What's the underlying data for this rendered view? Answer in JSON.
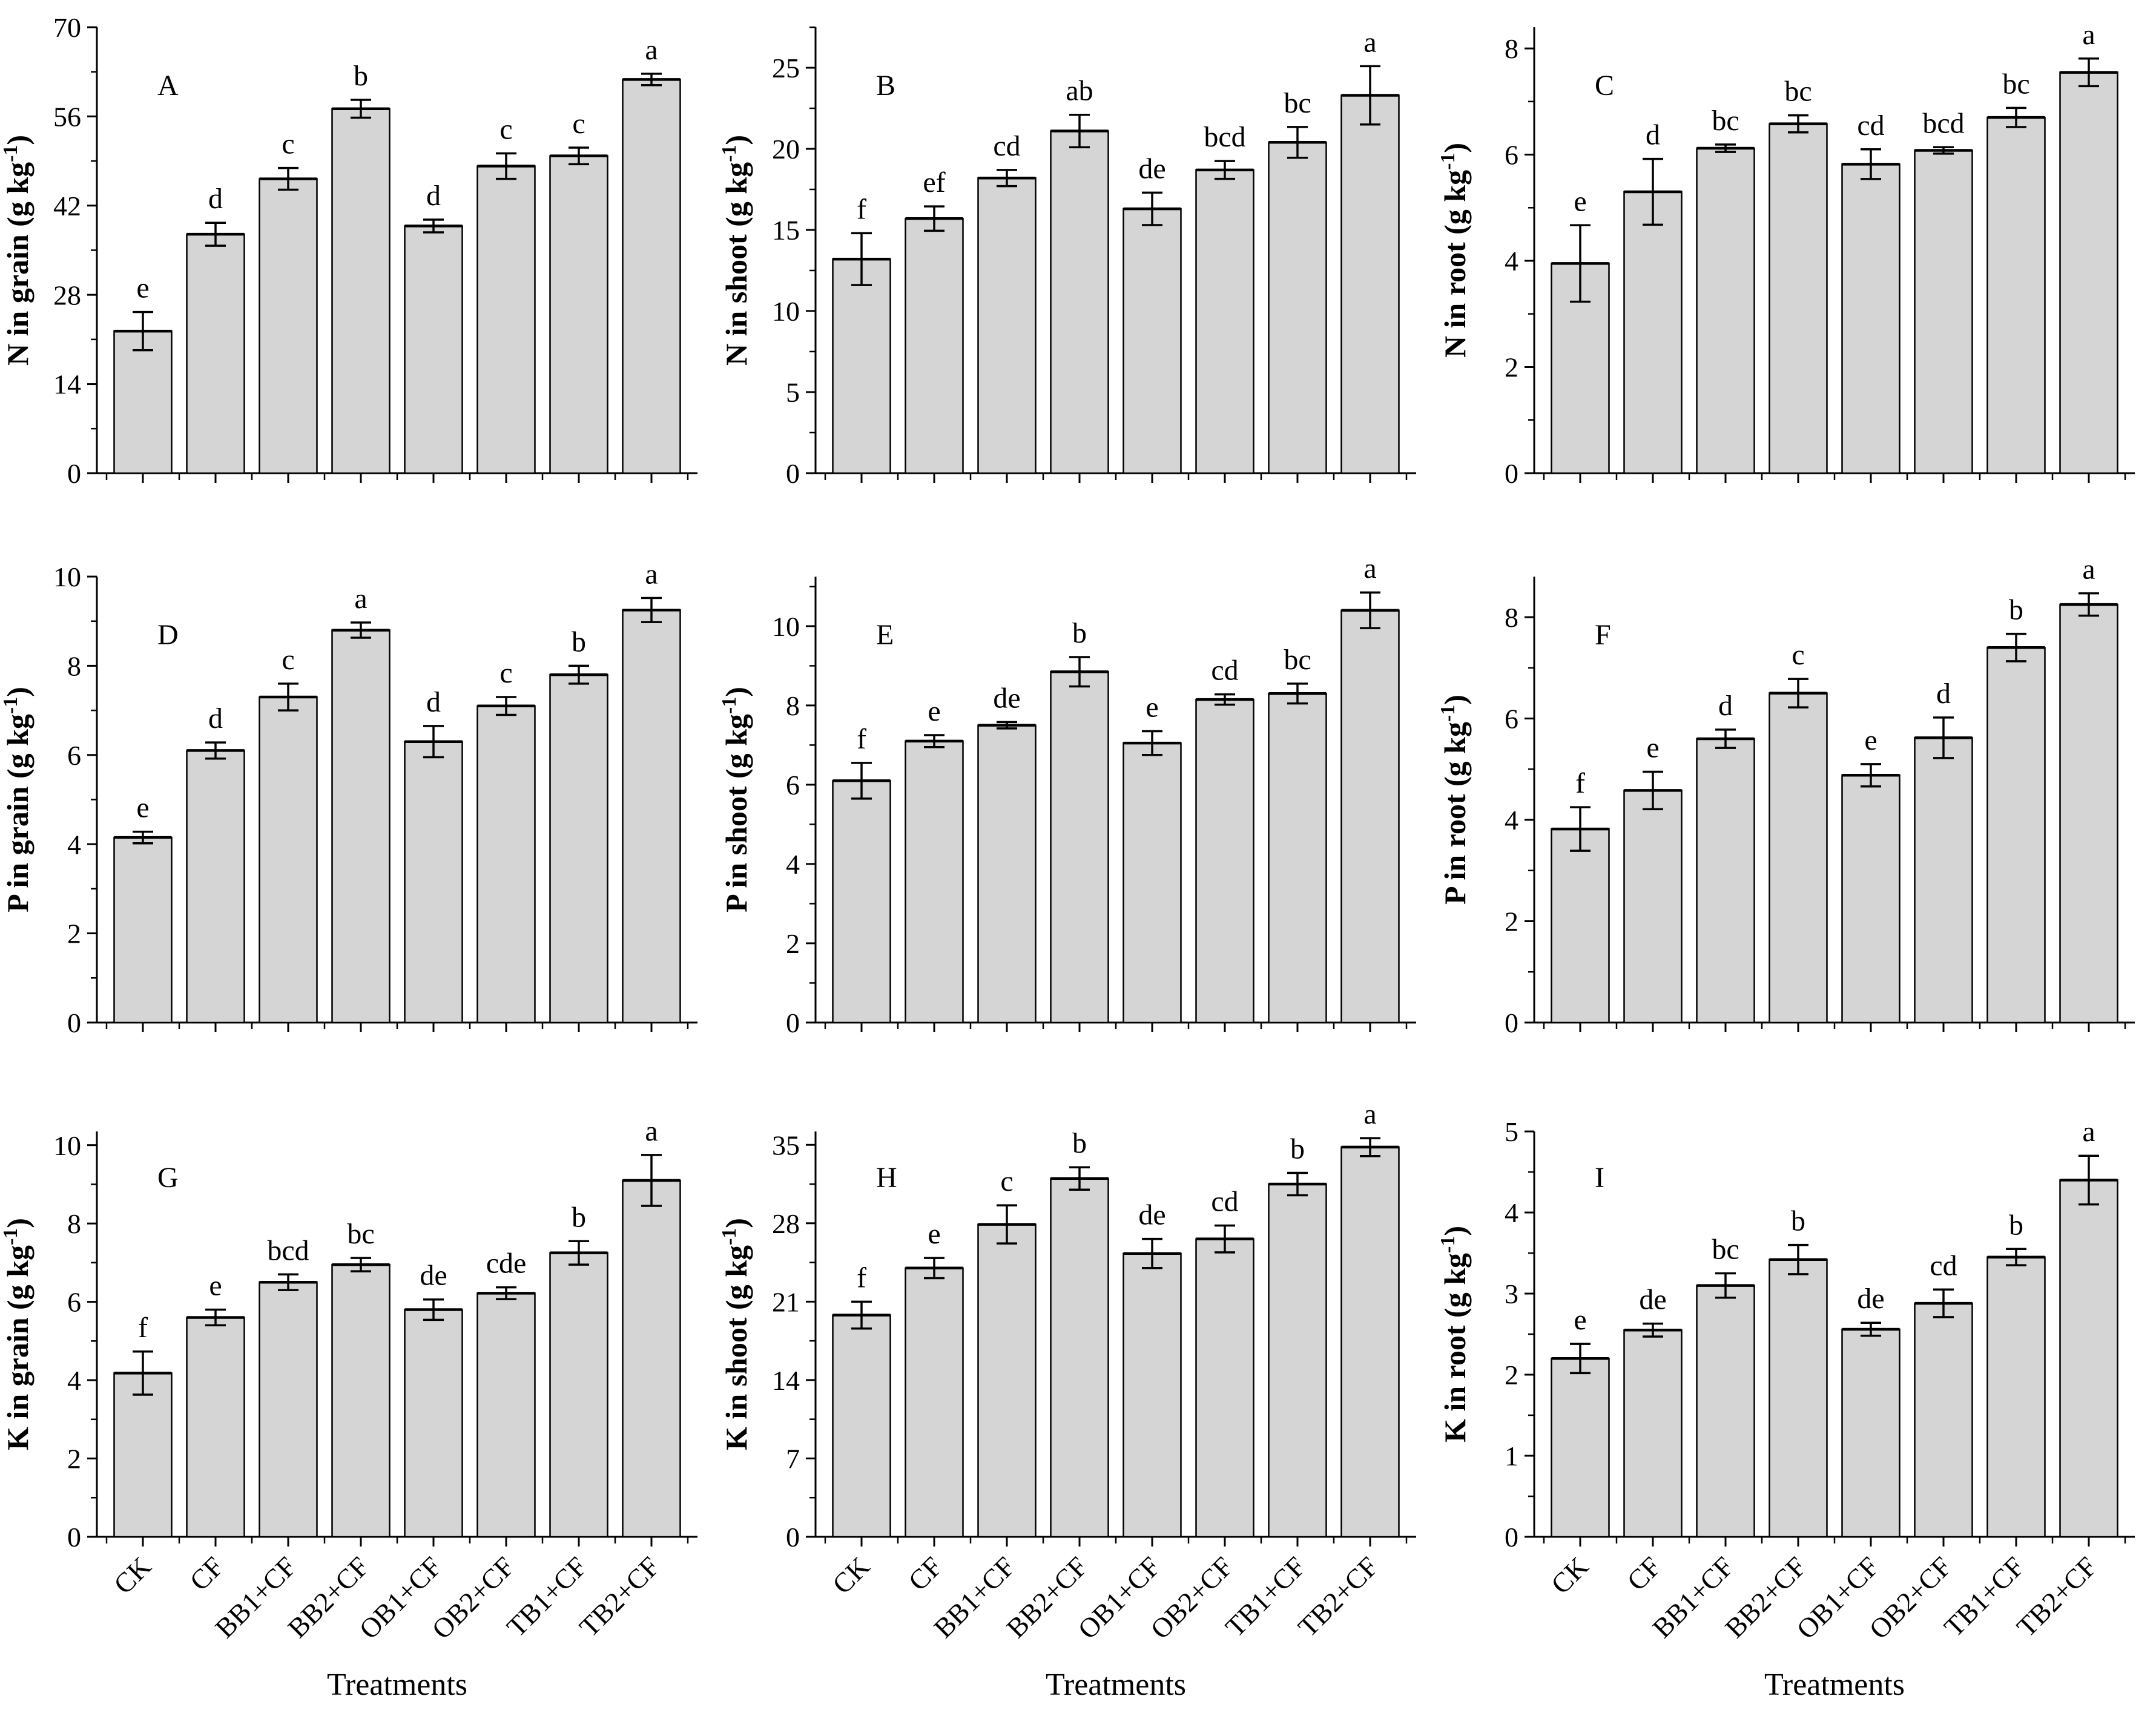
{
  "figure": {
    "background_color": "#ffffff",
    "bar_fill_color": "#d5d5d5",
    "line_color": "#000000",
    "xlabel": "Treatments",
    "categories": [
      "CK",
      "CF",
      "BB1+CF",
      "BB2+CF",
      "OB1+CF",
      "OB2+CF",
      "TB1+CF",
      "TB2+CF"
    ]
  },
  "chart_data": [
    {
      "type": "bar",
      "panel_label": "A",
      "ylabel": "N in grain (g kg⁻¹)",
      "categories": [
        "CK",
        "CF",
        "BB1+CF",
        "BB2+CF",
        "OB1+CF",
        "OB2+CF",
        "TB1+CF",
        "TB2+CF"
      ],
      "values": [
        22.3,
        37.5,
        46.2,
        57.2,
        38.8,
        48.2,
        49.8,
        61.8
      ],
      "errors": [
        3.0,
        1.8,
        1.7,
        1.4,
        1.0,
        2.0,
        1.3,
        0.9
      ],
      "sig_letters": [
        "e",
        "d",
        "c",
        "b",
        "d",
        "c",
        "c",
        "a"
      ],
      "ylim": [
        0,
        70
      ],
      "ytick_step": 14,
      "axis_top": 70,
      "grid": false,
      "legend": "none"
    },
    {
      "type": "bar",
      "panel_label": "B",
      "ylabel": "N in shoot (g kg⁻¹)",
      "categories": [
        "CK",
        "CF",
        "BB1+CF",
        "BB2+CF",
        "OB1+CF",
        "OB2+CF",
        "TB1+CF",
        "TB2+CF"
      ],
      "values": [
        13.2,
        15.7,
        18.2,
        21.1,
        16.3,
        18.7,
        20.4,
        23.3
      ],
      "errors": [
        1.6,
        0.75,
        0.5,
        1.0,
        1.0,
        0.55,
        0.95,
        1.8
      ],
      "sig_letters": [
        "f",
        "ef",
        "cd",
        "ab",
        "de",
        "bcd",
        "bc",
        "a"
      ],
      "ylim": [
        0,
        25
      ],
      "ytick_step": 5,
      "axis_top": 27.5,
      "grid": false,
      "legend": "none"
    },
    {
      "type": "bar",
      "panel_label": "C",
      "ylabel": "N in root (g kg⁻¹)",
      "categories": [
        "CK",
        "CF",
        "BB1+CF",
        "BB2+CF",
        "OB1+CF",
        "OB2+CF",
        "TB1+CF",
        "TB2+CF"
      ],
      "values": [
        3.95,
        5.3,
        6.12,
        6.58,
        5.82,
        6.08,
        6.7,
        7.55
      ],
      "errors": [
        0.72,
        0.62,
        0.07,
        0.16,
        0.28,
        0.06,
        0.18,
        0.26
      ],
      "sig_letters": [
        "e",
        "d",
        "bc",
        "bc",
        "cd",
        "bcd",
        "bc",
        "a"
      ],
      "ylim": [
        0,
        8
      ],
      "ytick_step": 2,
      "axis_top": 8.4,
      "grid": false,
      "legend": "none"
    },
    {
      "type": "bar",
      "panel_label": "D",
      "ylabel": "P in grain (g kg⁻¹)",
      "categories": [
        "CK",
        "CF",
        "BB1+CF",
        "BB2+CF",
        "OB1+CF",
        "OB2+CF",
        "TB1+CF",
        "TB2+CF"
      ],
      "values": [
        4.15,
        6.1,
        7.3,
        8.8,
        6.3,
        7.1,
        7.8,
        9.25
      ],
      "errors": [
        0.13,
        0.18,
        0.3,
        0.17,
        0.35,
        0.2,
        0.2,
        0.27
      ],
      "sig_letters": [
        "e",
        "d",
        "c",
        "a",
        "d",
        "c",
        "b",
        "a"
      ],
      "ylim": [
        0,
        10
      ],
      "ytick_step": 2,
      "axis_top": 10,
      "grid": false,
      "legend": "none"
    },
    {
      "type": "bar",
      "panel_label": "E",
      "ylabel": "P in shoot (g kg⁻¹)",
      "categories": [
        "CK",
        "CF",
        "BB1+CF",
        "BB2+CF",
        "OB1+CF",
        "OB2+CF",
        "TB1+CF",
        "TB2+CF"
      ],
      "values": [
        6.1,
        7.1,
        7.5,
        8.85,
        7.05,
        8.15,
        8.3,
        10.4
      ],
      "errors": [
        0.45,
        0.15,
        0.08,
        0.37,
        0.3,
        0.13,
        0.25,
        0.45
      ],
      "sig_letters": [
        "f",
        "e",
        "de",
        "b",
        "e",
        "cd",
        "bc",
        "a"
      ],
      "ylim": [
        0,
        10
      ],
      "ytick_step": 2,
      "axis_top": 11.25,
      "grid": false,
      "legend": "none"
    },
    {
      "type": "bar",
      "panel_label": "F",
      "ylabel": "P in root (g kg⁻¹)",
      "categories": [
        "CK",
        "CF",
        "BB1+CF",
        "BB2+CF",
        "OB1+CF",
        "OB2+CF",
        "TB1+CF",
        "TB2+CF"
      ],
      "values": [
        3.82,
        4.58,
        5.6,
        6.5,
        4.88,
        5.62,
        7.4,
        8.25
      ],
      "errors": [
        0.43,
        0.37,
        0.18,
        0.28,
        0.22,
        0.4,
        0.27,
        0.22
      ],
      "sig_letters": [
        "f",
        "e",
        "d",
        "c",
        "e",
        "d",
        "b",
        "a"
      ],
      "ylim": [
        0,
        8
      ],
      "ytick_step": 2,
      "axis_top": 8.8,
      "grid": false,
      "legend": "none"
    },
    {
      "type": "bar",
      "panel_label": "G",
      "ylabel": "K in grain (g kg⁻¹)",
      "categories": [
        "CK",
        "CF",
        "BB1+CF",
        "BB2+CF",
        "OB1+CF",
        "OB2+CF",
        "TB1+CF",
        "TB2+CF"
      ],
      "values": [
        4.18,
        5.6,
        6.5,
        6.95,
        5.8,
        6.22,
        7.25,
        9.1
      ],
      "errors": [
        0.55,
        0.2,
        0.2,
        0.17,
        0.26,
        0.15,
        0.3,
        0.65
      ],
      "sig_letters": [
        "f",
        "e",
        "bcd",
        "bc",
        "de",
        "cde",
        "b",
        "a"
      ],
      "ylim": [
        0,
        10
      ],
      "ytick_step": 2,
      "axis_top": 10.35,
      "grid": false,
      "legend": "none"
    },
    {
      "type": "bar",
      "panel_label": "H",
      "ylabel": "K in shoot (g kg⁻¹)",
      "categories": [
        "CK",
        "CF",
        "BB1+CF",
        "BB2+CF",
        "OB1+CF",
        "OB2+CF",
        "TB1+CF",
        "TB2+CF"
      ],
      "values": [
        19.8,
        24.0,
        27.9,
        32.0,
        25.3,
        26.6,
        31.5,
        34.8
      ],
      "errors": [
        1.2,
        0.9,
        1.7,
        1.0,
        1.3,
        1.2,
        1.0,
        0.8
      ],
      "sig_letters": [
        "f",
        "e",
        "c",
        "b",
        "de",
        "cd",
        "b",
        "a"
      ],
      "ylim": [
        0,
        35
      ],
      "ytick_step": 7,
      "axis_top": 36.2,
      "grid": false,
      "legend": "none"
    },
    {
      "type": "bar",
      "panel_label": "I",
      "ylabel": "K in root (g kg⁻¹)",
      "categories": [
        "CK",
        "CF",
        "BB1+CF",
        "BB2+CF",
        "OB1+CF",
        "OB2+CF",
        "TB1+CF",
        "TB2+CF"
      ],
      "values": [
        2.2,
        2.55,
        3.1,
        3.42,
        2.56,
        2.88,
        3.45,
        4.4
      ],
      "errors": [
        0.18,
        0.08,
        0.15,
        0.18,
        0.08,
        0.17,
        0.1,
        0.3
      ],
      "sig_letters": [
        "e",
        "de",
        "bc",
        "b",
        "de",
        "cd",
        "b",
        "a"
      ],
      "ylim": [
        0,
        5
      ],
      "ytick_step": 1,
      "axis_top": 5,
      "grid": false,
      "legend": "none"
    }
  ]
}
